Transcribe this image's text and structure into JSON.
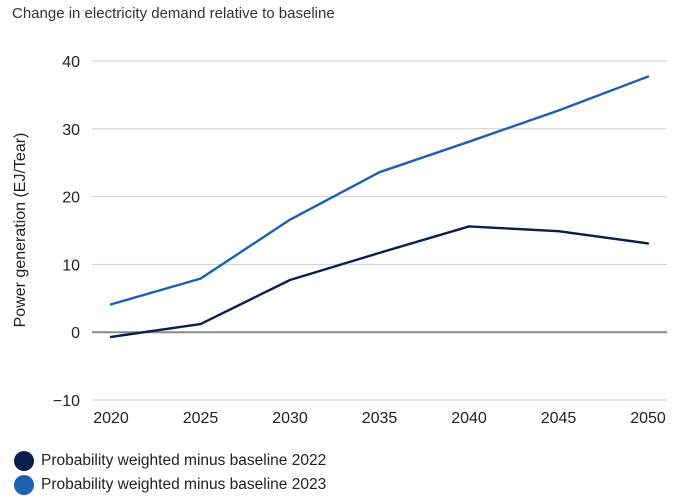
{
  "chart_data": {
    "type": "line",
    "title": "Change in electricity demand relative to baseline",
    "xlabel": "",
    "ylabel": "Power generation (EJ/Tear)",
    "x": [
      2020,
      2025,
      2030,
      2035,
      2040,
      2045,
      2050
    ],
    "xticks": [
      "2020",
      "2025",
      "2030",
      "2035",
      "2040",
      "2045",
      "2050"
    ],
    "yticks": [
      "−10",
      "0",
      "10",
      "20",
      "30",
      "40"
    ],
    "ylim": [
      -10,
      40
    ],
    "xlim": [
      2020,
      2050
    ],
    "grid": true,
    "legend_position": "bottom-left",
    "series": [
      {
        "name": "Probability weighted minus baseline 2022",
        "color": "#0b1f4f",
        "values": [
          -0.7,
          1.2,
          7.7,
          11.7,
          15.6,
          14.9,
          13.1
        ]
      },
      {
        "name": "Probability weighted minus baseline 2023",
        "color": "#1d5fb0",
        "values": [
          4.1,
          7.9,
          16.6,
          23.6,
          28.1,
          32.7,
          37.7
        ]
      }
    ]
  }
}
